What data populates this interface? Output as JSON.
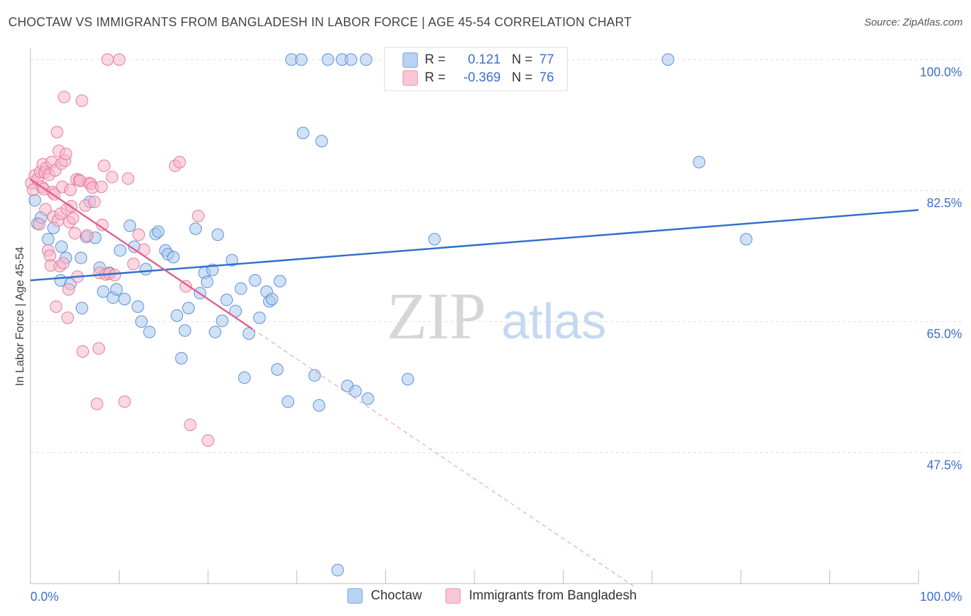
{
  "header": {
    "title": "CHOCTAW VS IMMIGRANTS FROM BANGLADESH IN LABOR FORCE | AGE 45-54 CORRELATION CHART",
    "source": "Source: ZipAtlas.com"
  },
  "legend": {
    "rows": [
      {
        "r_label": "R =",
        "r_value": "0.121",
        "n_label": "N =",
        "n_value": "77"
      },
      {
        "r_label": "R =",
        "r_value": "-0.369",
        "n_label": "N =",
        "n_value": "76"
      }
    ]
  },
  "watermark": {
    "zip": "ZIP",
    "atlas": "atlas"
  },
  "colors": {
    "choctaw_fill": "#a9c8ef",
    "choctaw_stroke": "#5a8fd6",
    "choctaw_line": "#2f6fcf",
    "bangladesh_fill": "#f6b8cb",
    "bangladesh_stroke": "#e8789c",
    "bangladesh_line": "#e0628e",
    "axis_label": "#3a6fcf",
    "grid": "#dddddd"
  },
  "chart_data": {
    "type": "scatter",
    "title": "CHOCTAW VS IMMIGRANTS FROM BANGLADESH IN LABOR FORCE | AGE 45-54 CORRELATION CHART",
    "xlabel": "",
    "ylabel": "In Labor Force | Age 45-54",
    "xlim": [
      0,
      100
    ],
    "ylim": [
      30,
      101.5
    ],
    "x_tick_labels": [
      "0.0%",
      "100.0%"
    ],
    "y_ticks": [
      47.5,
      65.0,
      82.5,
      100.0
    ],
    "y_tick_labels": [
      "47.5%",
      "65.0%",
      "82.5%",
      "100.0%"
    ],
    "grid": true,
    "legend_position": "bottom",
    "series": [
      {
        "name": "Choctaw",
        "trend": {
          "x": [
            0,
            100
          ],
          "y": [
            70.5,
            79.9
          ]
        },
        "points": [
          [
            0.5,
            81.2
          ],
          [
            0.8,
            78.1
          ],
          [
            1.2,
            78.9
          ],
          [
            2.0,
            76.0
          ],
          [
            2.6,
            77.5
          ],
          [
            3.5,
            75.0
          ],
          [
            4.0,
            73.5
          ],
          [
            3.4,
            70.5
          ],
          [
            4.5,
            70.0
          ],
          [
            5.7,
            73.5
          ],
          [
            5.8,
            66.8
          ],
          [
            6.3,
            76.3
          ],
          [
            7.3,
            76.2
          ],
          [
            6.7,
            81.0
          ],
          [
            7.8,
            72.2
          ],
          [
            8.2,
            69.0
          ],
          [
            8.9,
            71.5
          ],
          [
            9.3,
            68.2
          ],
          [
            9.7,
            69.3
          ],
          [
            10.1,
            74.5
          ],
          [
            10.6,
            68.0
          ],
          [
            11.2,
            77.8
          ],
          [
            11.7,
            75.0
          ],
          [
            12.1,
            67.0
          ],
          [
            12.5,
            65.0
          ],
          [
            13.0,
            72.0
          ],
          [
            13.4,
            63.6
          ],
          [
            14.1,
            76.7
          ],
          [
            14.4,
            77.0
          ],
          [
            15.2,
            74.5
          ],
          [
            15.5,
            74.0
          ],
          [
            16.1,
            73.6
          ],
          [
            16.5,
            65.8
          ],
          [
            17.0,
            60.1
          ],
          [
            17.4,
            63.8
          ],
          [
            17.8,
            66.8
          ],
          [
            18.6,
            77.4
          ],
          [
            19.1,
            68.8
          ],
          [
            19.6,
            71.5
          ],
          [
            19.9,
            70.3
          ],
          [
            20.5,
            71.9
          ],
          [
            20.8,
            63.6
          ],
          [
            21.1,
            76.6
          ],
          [
            21.6,
            65.1
          ],
          [
            22.1,
            67.9
          ],
          [
            22.7,
            73.2
          ],
          [
            23.1,
            66.4
          ],
          [
            23.7,
            69.4
          ],
          [
            24.1,
            57.5
          ],
          [
            24.6,
            63.4
          ],
          [
            25.3,
            70.5
          ],
          [
            25.8,
            65.5
          ],
          [
            26.6,
            69.0
          ],
          [
            26.9,
            67.7
          ],
          [
            27.2,
            68.0
          ],
          [
            27.8,
            58.6
          ],
          [
            28.1,
            70.4
          ],
          [
            29.0,
            54.3
          ],
          [
            29.4,
            100.0
          ],
          [
            30.5,
            100.0
          ],
          [
            30.7,
            90.2
          ],
          [
            32.0,
            57.8
          ],
          [
            32.5,
            53.8
          ],
          [
            32.8,
            89.1
          ],
          [
            33.5,
            100.0
          ],
          [
            34.6,
            31.8
          ],
          [
            35.1,
            100.0
          ],
          [
            35.7,
            56.4
          ],
          [
            36.1,
            100.0
          ],
          [
            36.6,
            55.7
          ],
          [
            37.8,
            100.0
          ],
          [
            38.0,
            54.7
          ],
          [
            42.5,
            57.3
          ],
          [
            45.5,
            76.0
          ],
          [
            71.8,
            100.0
          ],
          [
            75.3,
            86.3
          ],
          [
            80.6,
            76.0
          ]
        ]
      },
      {
        "name": "Immigrants from Bangladesh",
        "trend": {
          "x": [
            0,
            25
          ],
          "y": [
            84.0,
            64.0
          ],
          "dashed_extension": {
            "x": [
              25,
              68
            ],
            "y": [
              64.0,
              29.6
            ]
          }
        },
        "points": [
          [
            0.1,
            83.5
          ],
          [
            0.3,
            82.6
          ],
          [
            0.5,
            84.5
          ],
          [
            0.8,
            84.0
          ],
          [
            1.0,
            78.0
          ],
          [
            1.1,
            85.0
          ],
          [
            1.3,
            83.0
          ],
          [
            1.4,
            86.0
          ],
          [
            1.5,
            82.7
          ],
          [
            1.6,
            84.9
          ],
          [
            1.7,
            80.0
          ],
          [
            1.8,
            85.5
          ],
          [
            2.0,
            74.5
          ],
          [
            2.1,
            84.6
          ],
          [
            2.2,
            73.8
          ],
          [
            2.3,
            72.5
          ],
          [
            2.4,
            86.3
          ],
          [
            2.5,
            82.3
          ],
          [
            2.6,
            79.0
          ],
          [
            2.7,
            82.0
          ],
          [
            2.8,
            85.2
          ],
          [
            2.9,
            67.0
          ],
          [
            3.0,
            90.3
          ],
          [
            3.1,
            78.5
          ],
          [
            3.2,
            87.8
          ],
          [
            3.3,
            72.4
          ],
          [
            3.4,
            79.4
          ],
          [
            3.5,
            86.1
          ],
          [
            3.6,
            83.0
          ],
          [
            3.7,
            72.8
          ],
          [
            3.8,
            95.0
          ],
          [
            3.9,
            86.5
          ],
          [
            4.0,
            87.4
          ],
          [
            4.1,
            80.0
          ],
          [
            4.2,
            65.5
          ],
          [
            4.3,
            69.3
          ],
          [
            4.4,
            78.3
          ],
          [
            4.5,
            82.6
          ],
          [
            4.6,
            80.4
          ],
          [
            4.8,
            78.8
          ],
          [
            5.0,
            76.8
          ],
          [
            5.2,
            84.0
          ],
          [
            5.3,
            71.0
          ],
          [
            5.5,
            83.9
          ],
          [
            5.6,
            83.8
          ],
          [
            5.8,
            94.5
          ],
          [
            5.9,
            61.0
          ],
          [
            6.2,
            80.5
          ],
          [
            6.4,
            76.5
          ],
          [
            6.6,
            83.5
          ],
          [
            6.8,
            83.4
          ],
          [
            7.0,
            82.9
          ],
          [
            7.2,
            81.0
          ],
          [
            7.5,
            54.0
          ],
          [
            7.7,
            61.4
          ],
          [
            7.8,
            71.5
          ],
          [
            8.0,
            83.0
          ],
          [
            8.1,
            77.9
          ],
          [
            8.3,
            85.8
          ],
          [
            8.5,
            71.3
          ],
          [
            8.7,
            100.0
          ],
          [
            8.9,
            71.4
          ],
          [
            9.2,
            84.3
          ],
          [
            9.5,
            71.2
          ],
          [
            10.0,
            100.0
          ],
          [
            10.6,
            54.3
          ],
          [
            11.0,
            84.1
          ],
          [
            11.6,
            72.7
          ],
          [
            12.2,
            76.6
          ],
          [
            12.8,
            74.6
          ],
          [
            16.3,
            85.8
          ],
          [
            16.8,
            86.3
          ],
          [
            17.5,
            69.7
          ],
          [
            18.0,
            51.2
          ],
          [
            18.9,
            79.1
          ],
          [
            20.0,
            49.1
          ]
        ]
      }
    ]
  },
  "bottom_legend": {
    "items": [
      "Choctaw",
      "Immigrants from Bangladesh"
    ]
  }
}
